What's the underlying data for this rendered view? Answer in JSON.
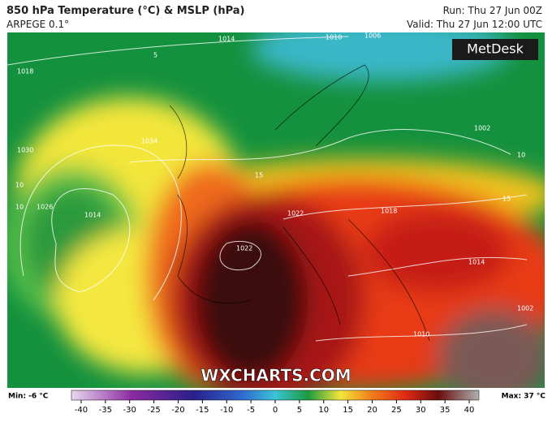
{
  "header": {
    "title": "850 hPa Temperature (°C) & MSLP (hPa)",
    "model": "ARPEGE 0.1°",
    "run": "Run: Thu 27 Jun 00Z",
    "valid": "Valid: Thu 27 Jun 12:00 UTC"
  },
  "logo": "MetDesk",
  "watermark": "WXCHARTS.COM",
  "map_labels": [
    "1018",
    "1014",
    "1010",
    "1006",
    "1034",
    "1030",
    "1026",
    "1014",
    "1022",
    "1022",
    "1018",
    "1014",
    "1010",
    "1002",
    "1002",
    "10",
    "10",
    "10",
    "15",
    "15",
    "5"
  ],
  "colorbar": {
    "min_label": "Min: -6 °C",
    "max_label": "Max: 37 °C",
    "xlim": [
      -42,
      42
    ],
    "xticks": [
      -40,
      -35,
      -30,
      -25,
      -20,
      -15,
      -10,
      -5,
      0,
      5,
      10,
      15,
      20,
      25,
      30,
      35,
      40
    ]
  }
}
